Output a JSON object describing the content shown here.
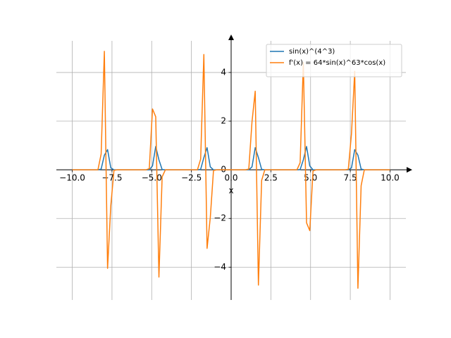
{
  "chart_data": {
    "type": "line",
    "xlabel": "x",
    "x": [
      -10,
      -9.798,
      -9.596,
      -9.394,
      -9.192,
      -8.99,
      -8.788,
      -8.586,
      -8.384,
      -8.182,
      -7.98,
      -7.778,
      -7.576,
      -7.374,
      -7.172,
      -6.97,
      -6.768,
      -6.566,
      -6.364,
      -6.162,
      -5.96,
      -5.758,
      -5.556,
      -5.354,
      -5.152,
      -4.949,
      -4.747,
      -4.545,
      -4.343,
      -4.141,
      -3.939,
      -3.737,
      -3.535,
      -3.333,
      -3.131,
      -2.929,
      -2.727,
      -2.525,
      -2.323,
      -2.121,
      -1.919,
      -1.717,
      -1.515,
      -1.313,
      -1.111,
      -0.909,
      -0.707,
      -0.505,
      -0.303,
      -0.101,
      0.101,
      0.303,
      0.505,
      0.707,
      0.909,
      1.111,
      1.313,
      1.515,
      1.717,
      1.919,
      2.121,
      2.323,
      2.525,
      2.727,
      2.929,
      3.131,
      3.333,
      3.535,
      3.737,
      3.939,
      4.141,
      4.343,
      4.545,
      4.747,
      4.949,
      5.152,
      5.354,
      5.556,
      5.758,
      5.96,
      6.162,
      6.364,
      6.566,
      6.768,
      6.97,
      7.172,
      7.374,
      7.576,
      7.778,
      7.98,
      8.182,
      8.384,
      8.586,
      8.788,
      8.99,
      9.192,
      9.394,
      9.596,
      9.798,
      10
    ],
    "series": [
      {
        "name": "sin(x)^(4^3)",
        "color": "#1f77b4",
        "values": [
          0,
          0,
          0,
          0,
          0,
          0,
          0,
          0,
          0,
          0.03,
          0.6,
          0.83,
          0.08,
          0,
          0,
          0,
          0,
          0,
          0,
          0,
          0,
          0,
          0,
          0,
          0,
          0.16,
          0.96,
          0.41,
          0.01,
          0,
          0,
          0,
          0,
          0,
          0,
          0,
          0,
          0,
          0,
          0,
          0.02,
          0.5,
          0.91,
          0.12,
          0,
          0,
          0,
          0,
          0,
          0,
          0,
          0,
          0,
          0,
          0,
          0,
          0.12,
          0.91,
          0.5,
          0.02,
          0,
          0,
          0,
          0,
          0,
          0,
          0,
          0,
          0,
          0,
          0,
          0.01,
          0.41,
          0.96,
          0.16,
          0,
          0,
          0,
          0,
          0,
          0,
          0,
          0,
          0,
          0,
          0,
          0,
          0.08,
          0.83,
          0.6,
          0.03,
          0,
          0,
          0,
          0,
          0,
          0,
          0,
          0,
          0
        ]
      },
      {
        "name": "f'(x) = 64*sin(x)^63*cos(x)",
        "color": "#ff7f0e",
        "values": [
          0,
          0,
          0,
          0,
          0,
          0,
          0,
          0,
          0,
          0.65,
          4.87,
          -4.05,
          -1.49,
          -0.02,
          0,
          0,
          0,
          0,
          0,
          0,
          0,
          0,
          0,
          0,
          0.05,
          2.5,
          2.18,
          -4.41,
          -0.29,
          0,
          0,
          0,
          0,
          0,
          0,
          0,
          0,
          0,
          0,
          0,
          0.44,
          4.74,
          -3.23,
          -1.97,
          -0.03,
          0,
          0,
          0,
          0,
          0,
          0,
          0,
          0,
          0,
          0,
          0.03,
          1.97,
          3.23,
          -4.74,
          -0.44,
          0,
          0,
          0,
          0,
          0,
          0,
          0,
          0,
          0,
          0,
          0,
          0.29,
          4.41,
          -2.18,
          -2.5,
          -0.05,
          0,
          0,
          0,
          0,
          0,
          0,
          0,
          0,
          0,
          0,
          0.02,
          1.49,
          4.05,
          -4.87,
          -0.65,
          0,
          0,
          0,
          0,
          0,
          0,
          0,
          0,
          0
        ]
      }
    ],
    "xlim": [
      -11,
      11
    ],
    "ylim": [
      -5.35,
      5.3
    ],
    "xticks": [
      {
        "value": -10,
        "label": "−10.0"
      },
      {
        "value": -7.5,
        "label": "−7.5"
      },
      {
        "value": -5,
        "label": "−5.0"
      },
      {
        "value": -2.5,
        "label": "−2.5"
      },
      {
        "value": 0,
        "label": "0.0"
      },
      2.5,
      {
        "value": 5,
        "label": "5.0"
      },
      7.5,
      {
        "value": 10,
        "label": "10.0"
      }
    ],
    "yticks": [
      {
        "value": -4,
        "label": "−4"
      },
      {
        "value": -2,
        "label": "−2"
      },
      0,
      2,
      4
    ],
    "grid": true,
    "legend": "upper right"
  }
}
